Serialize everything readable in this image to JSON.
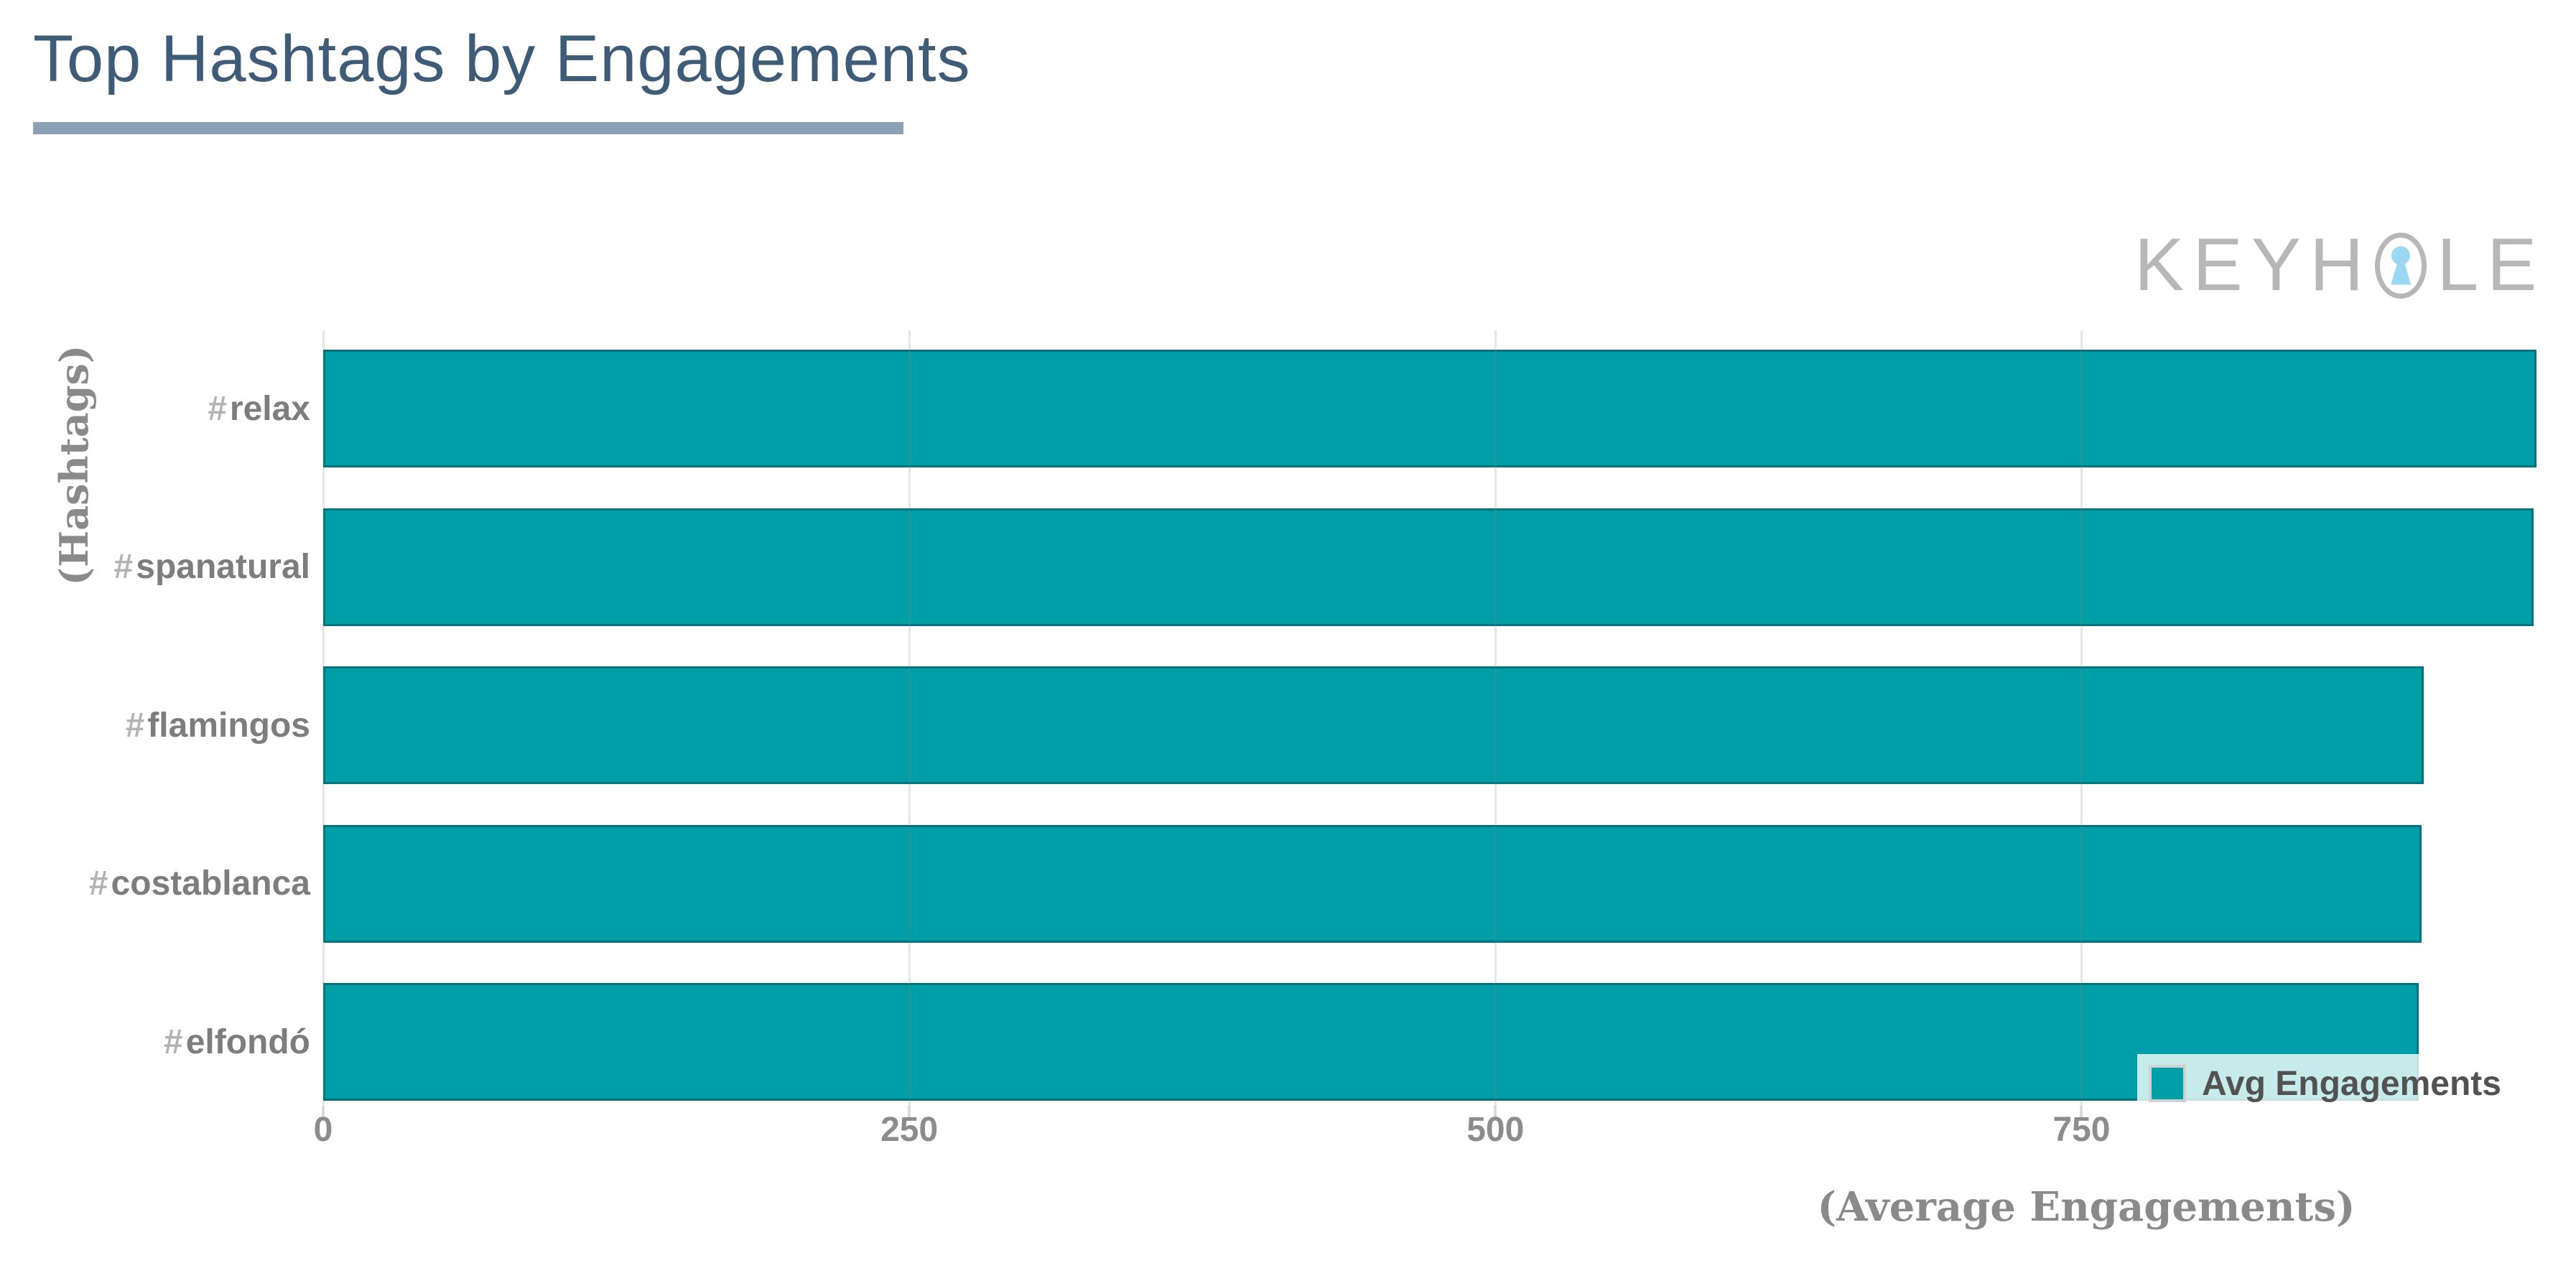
{
  "header": {
    "title": "Top Hashtags by Engagements"
  },
  "watermark": {
    "brand": "Keyhole",
    "text_before_o": "KEYH",
    "text_after_o": "LE"
  },
  "chart_data": {
    "type": "bar",
    "orientation": "horizontal",
    "title": "Top Hashtags by Engagements",
    "categories": [
      "#relax",
      "#spanatural",
      "#flamingos",
      "#costablanca",
      "#elfondó"
    ],
    "series": [
      {
        "name": "Avg Engagements",
        "values": [
          944,
          943,
          896,
          895,
          894
        ]
      }
    ],
    "xlabel": "(Average Engagements)",
    "ylabel": "(Hashtags)",
    "x_ticks": [
      "0",
      "250",
      "500",
      "750"
    ],
    "x_tick_values": [
      0,
      250,
      500,
      750
    ],
    "xlim": [
      0,
      960
    ],
    "grid": true,
    "legend": {
      "label": "Avg Engagements",
      "position": "bottom-right"
    },
    "colors": {
      "bar_fill": "#009ea6",
      "bar_border": "#00747e",
      "grid_overlay": "rgba(130,130,130,0.20)",
      "tick_text": "#8c8c8c",
      "category_text": "#7d7d7d",
      "hash_text": "#b3b3b3",
      "axis_title_text": "#8a8a8a",
      "legend_text": "#525252",
      "title_text": "#3e5c77",
      "title_underline": "#8ca2b4",
      "watermark_letters": "#b7b7b7",
      "watermark_keyhole": "#9ad7f3"
    }
  }
}
